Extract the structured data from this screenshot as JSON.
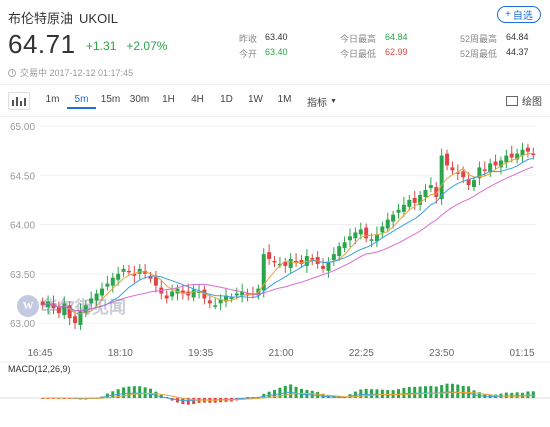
{
  "header": {
    "name": "布伦特原油",
    "symbol": "UKOIL",
    "add_label": "自选",
    "price": "64.71",
    "change": "+1.31",
    "change_pct": "+2.07%",
    "status": "交易中 2017-12-12 01:17:45"
  },
  "stats": [
    {
      "label": "昨收",
      "value": "63.40",
      "color": "#333333"
    },
    {
      "label": "今日最高",
      "value": "64.84",
      "color": "#2aa54a"
    },
    {
      "label": "52周最高",
      "value": "64.84",
      "color": "#333333"
    },
    {
      "label": "今开",
      "value": "63.40",
      "color": "#2aa54a"
    },
    {
      "label": "今日最低",
      "value": "62.99",
      "color": "#e04646"
    },
    {
      "label": "52周最低",
      "value": "44.37",
      "color": "#333333"
    }
  ],
  "toolbar": {
    "periods": [
      "1m",
      "5m",
      "15m",
      "30m",
      "1H",
      "4H",
      "1D",
      "1W",
      "1M"
    ],
    "active_period": "5m",
    "indicator_label": "指标",
    "draw_label": "绘图"
  },
  "watermark": "华尔街见闻",
  "colors": {
    "up": "#2aa54a",
    "down": "#e04646",
    "ma_short": "#e8a63c",
    "ma_mid": "#3ba1e0",
    "ma_long": "#d86fd2"
  },
  "chart_data": {
    "type": "candlestick",
    "ylim": [
      62.95,
      65.0
    ],
    "y_ticks": [
      "65.00",
      "64.50",
      "64.00",
      "63.50",
      "63.00"
    ],
    "x_ticks": [
      "16:45",
      "18:10",
      "19:35",
      "21:00",
      "22:25",
      "23:50",
      "01:15"
    ],
    "close": [
      63.18,
      63.22,
      63.15,
      63.1,
      63.2,
      63.05,
      63.0,
      63.12,
      63.18,
      63.25,
      63.3,
      63.35,
      63.4,
      63.46,
      63.5,
      63.55,
      63.52,
      63.48,
      63.55,
      63.5,
      63.45,
      63.38,
      63.3,
      63.25,
      63.32,
      63.35,
      63.3,
      63.28,
      63.34,
      63.32,
      63.25,
      63.2,
      63.18,
      63.24,
      63.28,
      63.26,
      63.3,
      63.32,
      63.28,
      63.3,
      63.35,
      63.7,
      63.65,
      63.62,
      63.6,
      63.58,
      63.65,
      63.62,
      63.6,
      63.68,
      63.65,
      63.6,
      63.55,
      63.62,
      63.7,
      63.78,
      63.82,
      63.88,
      63.92,
      63.95,
      63.86,
      63.85,
      63.9,
      63.98,
      64.05,
      64.1,
      64.15,
      64.2,
      64.25,
      64.22,
      64.3,
      64.35,
      64.4,
      64.28,
      64.7,
      64.6,
      64.55,
      64.52,
      64.48,
      64.4,
      64.45,
      64.58,
      64.55,
      64.62,
      64.6,
      64.65,
      64.7,
      64.68,
      64.72,
      64.76,
      64.74,
      64.71
    ],
    "macd_label": "MACD(12,26,9)"
  }
}
